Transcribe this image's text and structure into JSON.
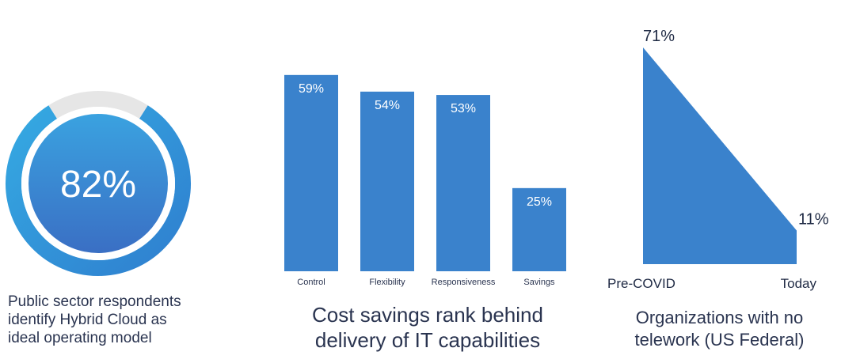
{
  "chart_data": [
    {
      "type": "donut",
      "value": 82,
      "value_label": "82%",
      "caption_lines": [
        "Public sector respondents",
        "identify Hybrid Cloud as",
        "ideal operating model"
      ],
      "colors": {
        "fill": "#2f8fd6",
        "track": "#e6e6e6",
        "inner_light": "#3aa2e0",
        "inner_dark": "#3a6fc4",
        "text": "#ffffff"
      }
    },
    {
      "type": "bar",
      "categories": [
        "Control",
        "Flexibility",
        "Responsiveness",
        "Savings"
      ],
      "values": [
        59,
        54,
        53,
        25
      ],
      "value_labels": [
        "59%",
        "54%",
        "53%",
        "25%"
      ],
      "ylim": [
        0,
        63
      ],
      "caption_lines": [
        "Cost savings rank behind",
        "delivery of IT capabilities"
      ],
      "colors": {
        "bar": "#3a82cc",
        "label": "#ffffff",
        "tick": "#2a3450"
      }
    },
    {
      "type": "area",
      "categories": [
        "Pre-COVID",
        "Today"
      ],
      "values": [
        71,
        11
      ],
      "value_labels": [
        "71%",
        "11%"
      ],
      "ylim": [
        0,
        71
      ],
      "caption_lines": [
        "Organizations with no",
        "telework (US Federal)"
      ],
      "colors": {
        "fill": "#3a82cc",
        "label": "#1f2a44"
      }
    }
  ]
}
